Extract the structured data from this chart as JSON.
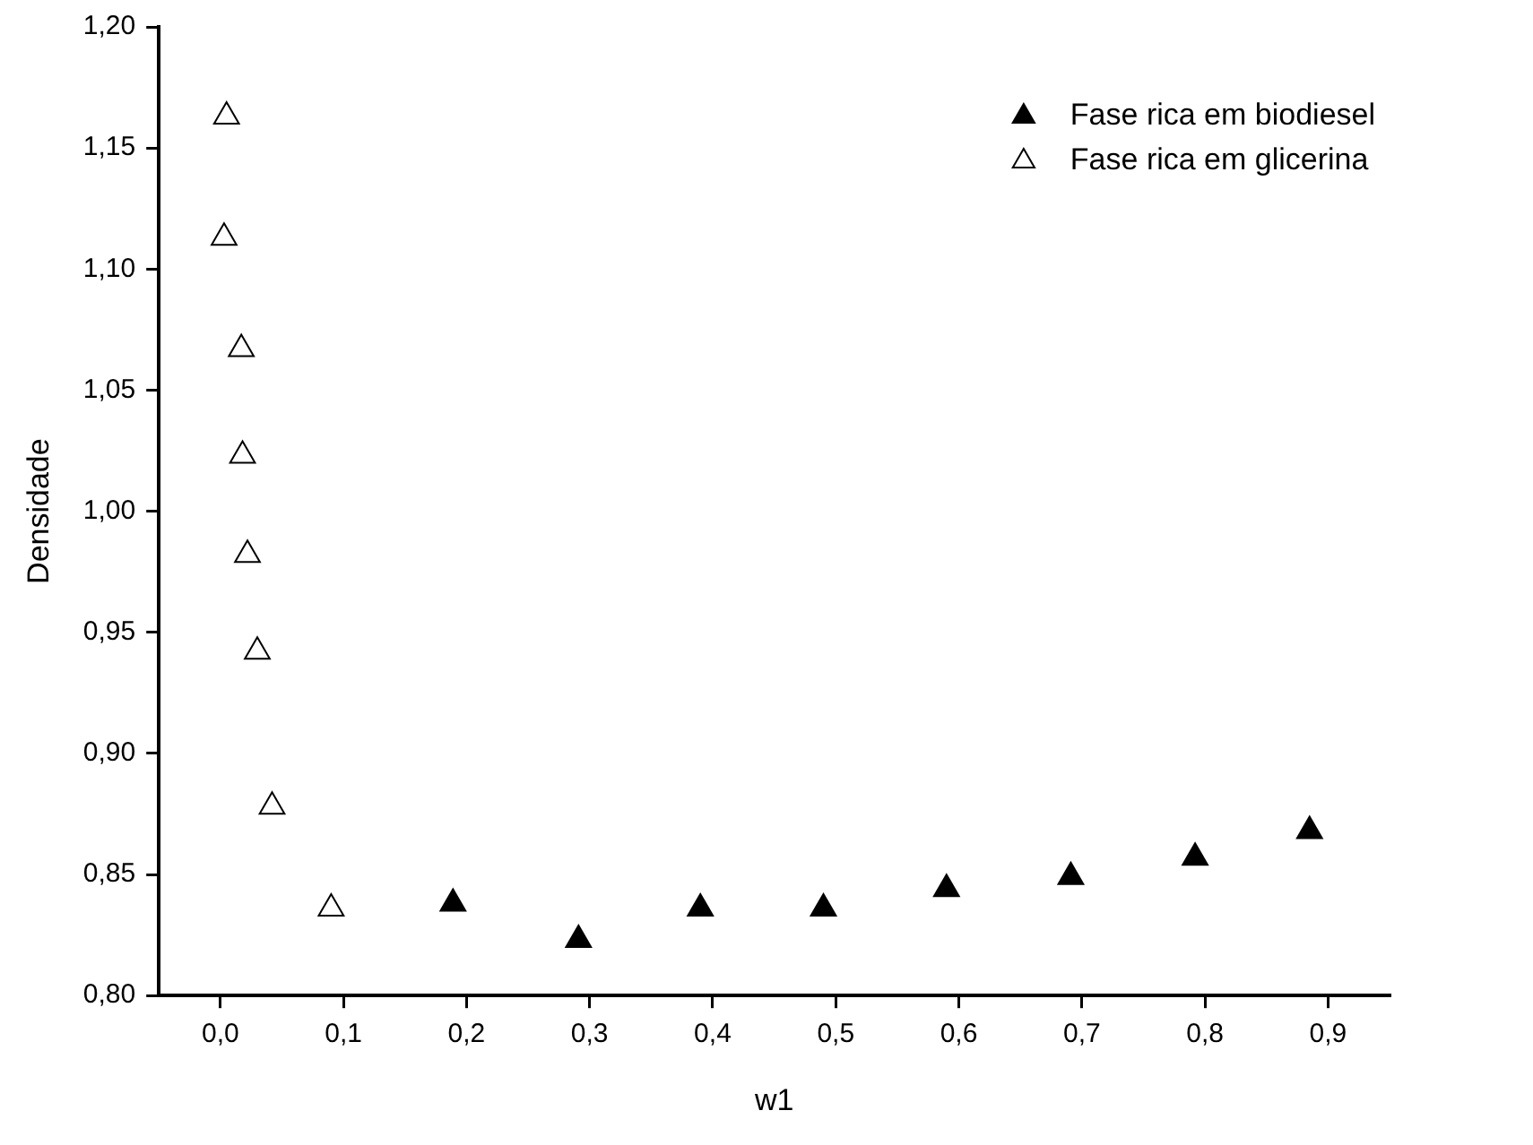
{
  "chart_data": {
    "type": "scatter",
    "xlabel": "w1",
    "ylabel": "Densidade",
    "xlim": [
      -0.05,
      0.95
    ],
    "ylim": [
      0.8,
      1.2
    ],
    "xticks": [
      {
        "value": 0,
        "label": "0,0"
      },
      {
        "value": 0.1,
        "label": "0,1"
      },
      {
        "value": 0.2,
        "label": "0,2"
      },
      {
        "value": 0.3,
        "label": "0,3"
      },
      {
        "value": 0.4,
        "label": "0,4"
      },
      {
        "value": 0.5,
        "label": "0,5"
      },
      {
        "value": 0.6,
        "label": "0,6"
      },
      {
        "value": 0.7,
        "label": "0,7"
      },
      {
        "value": 0.8,
        "label": "0,8"
      },
      {
        "value": 0.9,
        "label": "0,9"
      }
    ],
    "yticks": [
      {
        "value": 0.8,
        "label": "0,80"
      },
      {
        "value": 0.85,
        "label": "0,85"
      },
      {
        "value": 0.9,
        "label": "0,90"
      },
      {
        "value": 0.95,
        "label": "0,95"
      },
      {
        "value": 1.0,
        "label": "1,00"
      },
      {
        "value": 1.05,
        "label": "1,05"
      },
      {
        "value": 1.1,
        "label": "1,10"
      },
      {
        "value": 1.15,
        "label": "1,15"
      },
      {
        "value": 1.2,
        "label": "1,20"
      }
    ],
    "grid": false,
    "legend": "top right",
    "marker": "triangle",
    "series": [
      {
        "name": "Fase rica em biodiesel",
        "color": "#000000",
        "x": [
          0.189,
          0.291,
          0.39,
          0.49,
          0.59,
          0.691,
          0.792,
          0.885
        ],
        "values": [
          0.838,
          0.823,
          0.836,
          0.836,
          0.844,
          0.849,
          0.857,
          0.868
        ]
      },
      {
        "name": "Fase rica em glicerina",
        "color": "#ffffff",
        "x": [
          0.005,
          0.003,
          0.017,
          0.018,
          0.022,
          0.03,
          0.042,
          0.09
        ],
        "values": [
          1.163,
          1.113,
          1.067,
          1.023,
          0.982,
          0.942,
          0.878,
          0.836
        ]
      }
    ]
  }
}
